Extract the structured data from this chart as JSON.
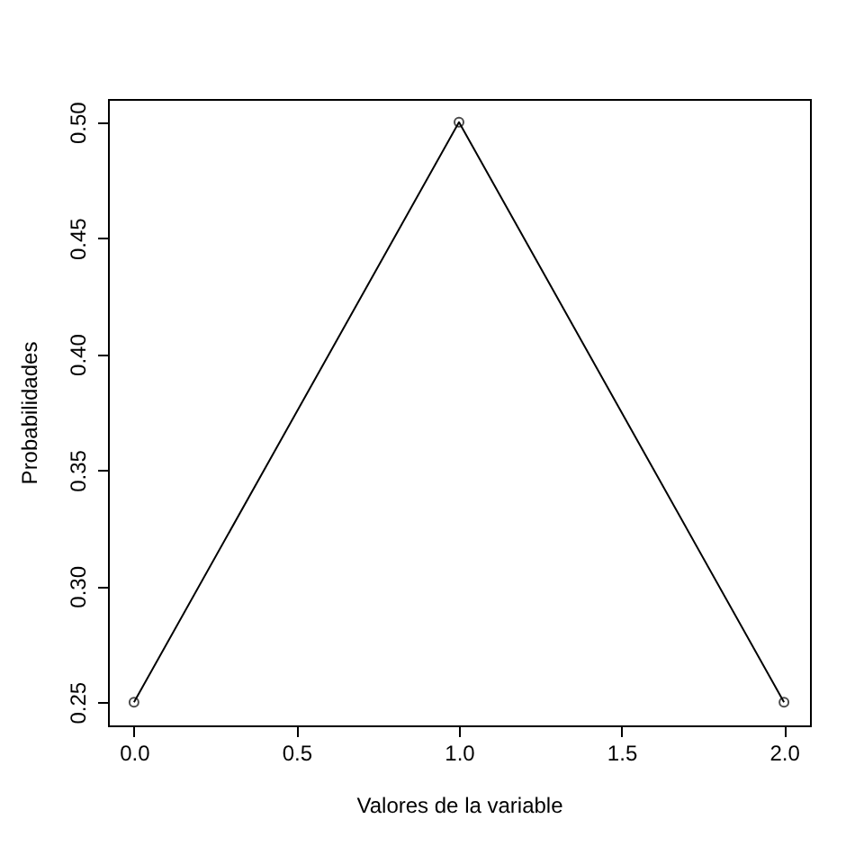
{
  "chart_data": {
    "type": "line",
    "xlabel": "Valores de la variable",
    "ylabel": "Probabilidades",
    "x": [
      0,
      1,
      2
    ],
    "series": [
      {
        "color": "#000000",
        "values": [
          0.25,
          0.5,
          0.25
        ]
      }
    ],
    "xlim": [
      -0.08,
      2.08
    ],
    "ylim": [
      0.24,
      0.51
    ],
    "xticks": [
      {
        "value": 0,
        "label": "0.0"
      },
      {
        "value": 0.5,
        "label": "0.5"
      },
      {
        "value": 1,
        "label": "1.0"
      },
      {
        "value": 1.5,
        "label": "1.5"
      },
      {
        "value": 2,
        "label": "2.0"
      }
    ],
    "yticks": [
      0.25,
      {
        "value": 0.3,
        "label": "0.30"
      },
      0.35,
      {
        "value": 0.4,
        "label": "0.40"
      },
      0.45,
      {
        "value": 0.5,
        "label": "0.50"
      }
    ],
    "marker": "circle",
    "line_style": "solid",
    "grid": false
  }
}
